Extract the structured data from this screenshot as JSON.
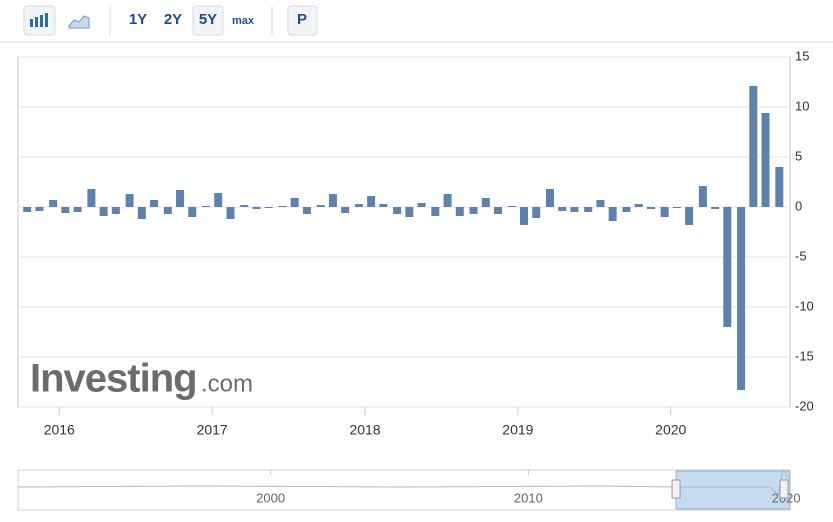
{
  "toolbar": {
    "ranges": [
      "1Y",
      "2Y",
      "5Y",
      "max"
    ],
    "active": "5Y",
    "print": "P"
  },
  "watermark": {
    "brand": "Investing",
    "suffix": ".com"
  },
  "chart_data": {
    "type": "bar",
    "color": "#5f82ad",
    "x": [
      2015.79,
      2015.87,
      2015.96,
      2016.04,
      2016.12,
      2016.21,
      2016.29,
      2016.37,
      2016.46,
      2016.54,
      2016.62,
      2016.71,
      2016.79,
      2016.87,
      2016.96,
      2017.04,
      2017.12,
      2017.21,
      2017.29,
      2017.37,
      2017.46,
      2017.54,
      2017.62,
      2017.71,
      2017.79,
      2017.87,
      2017.96,
      2018.04,
      2018.12,
      2018.21,
      2018.29,
      2018.37,
      2018.46,
      2018.54,
      2018.62,
      2018.71,
      2018.79,
      2018.87,
      2018.96,
      2019.04,
      2019.12,
      2019.21,
      2019.29,
      2019.37,
      2019.46,
      2019.54,
      2019.62,
      2019.71,
      2019.79,
      2019.87,
      2019.96,
      2020.04,
      2020.12,
      2020.21,
      2020.29,
      2020.37,
      2020.46,
      2020.54,
      2020.62,
      2020.71
    ],
    "values": [
      -0.5,
      -0.4,
      0.7,
      -0.6,
      -0.5,
      1.8,
      -0.9,
      -0.7,
      1.3,
      -1.2,
      0.7,
      -0.7,
      1.7,
      -1.0,
      0.1,
      1.4,
      -1.2,
      0.2,
      -0.2,
      -0.1,
      0.1,
      0.9,
      -0.7,
      0.2,
      1.3,
      -0.6,
      0.3,
      1.1,
      0.3,
      -0.7,
      -1.0,
      0.4,
      -0.9,
      1.3,
      -0.9,
      -0.7,
      0.9,
      -0.7,
      0.1,
      -1.8,
      -1.1,
      1.8,
      -0.4,
      -0.5,
      -0.5,
      0.7,
      -1.4,
      -0.5,
      0.3,
      -0.2,
      -1.0,
      -0.1,
      -1.8,
      2.1,
      -0.2,
      -12,
      -18.3,
      12.1,
      9.4,
      4.0
    ],
    "xlim": [
      2015.73,
      2020.78
    ],
    "xticks": [
      2016,
      2017,
      2018,
      2019,
      2020
    ],
    "ylim": [
      -20,
      15
    ],
    "yticks": [
      15,
      10,
      5,
      0,
      -5,
      -10,
      -15,
      -20
    ],
    "grid": true,
    "navigator": {
      "xlim": [
        1990.2,
        2020.15
      ],
      "xticks": [
        2000,
        2010,
        2020
      ]
    }
  }
}
